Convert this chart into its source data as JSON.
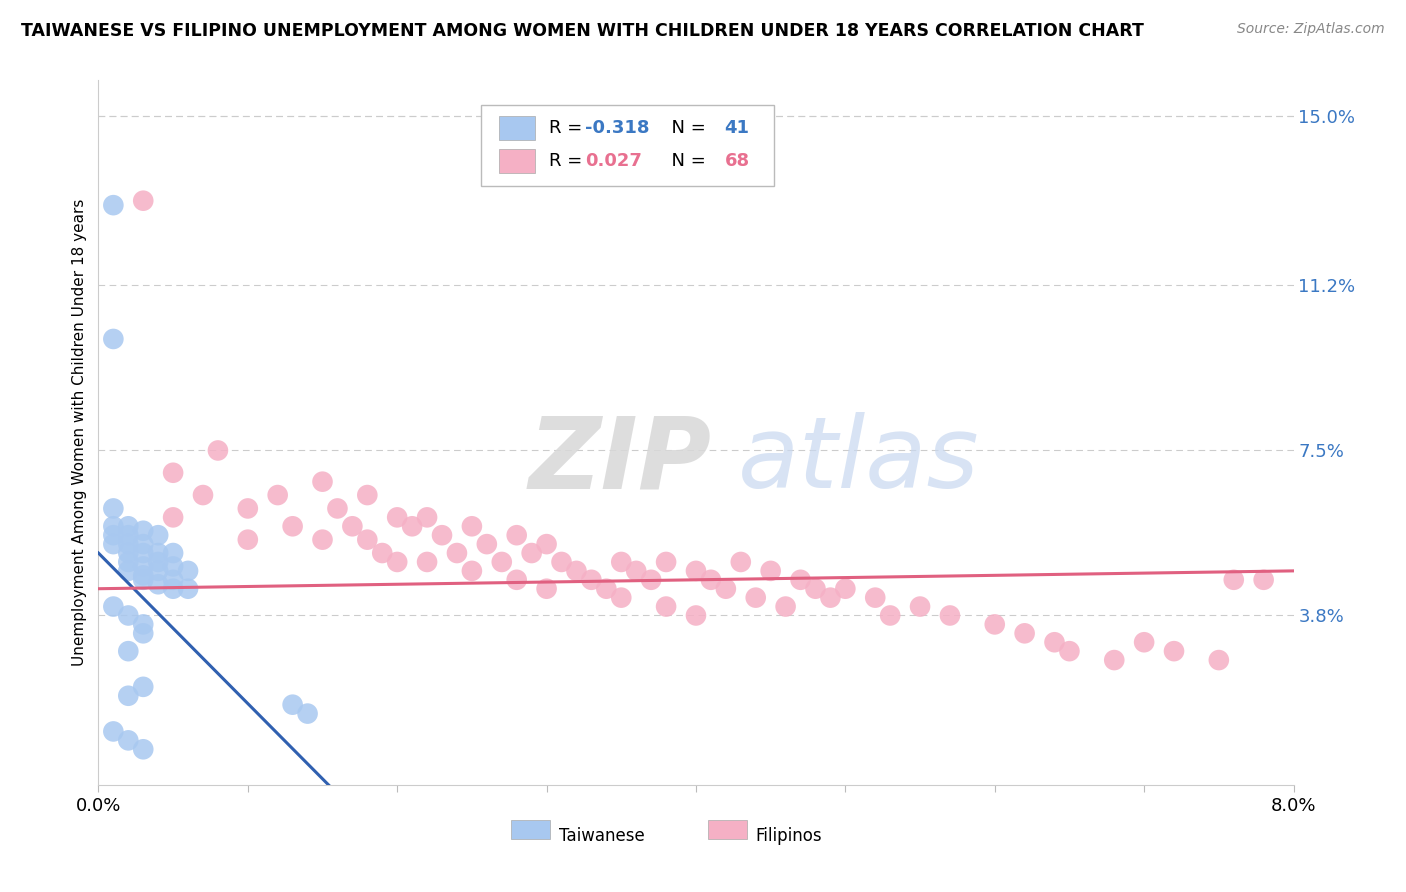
{
  "title": "TAIWANESE VS FILIPINO UNEMPLOYMENT AMONG WOMEN WITH CHILDREN UNDER 18 YEARS CORRELATION CHART",
  "source": "Source: ZipAtlas.com",
  "xmin": 0.0,
  "xmax": 0.08,
  "ymin": 0.0,
  "ymax": 0.158,
  "ytick_vals": [
    0.0,
    0.038,
    0.075,
    0.112,
    0.15
  ],
  "ytick_labels": [
    "",
    "3.8%",
    "7.5%",
    "11.2%",
    "15.0%"
  ],
  "taiwanese_color": "#a8c8f0",
  "filipino_color": "#f5b0c5",
  "trend_tw_color": "#3060b0",
  "trend_fil_color": "#e06080",
  "tw_R": "-0.318",
  "tw_N": "41",
  "fil_R": "0.027",
  "fil_N": "68",
  "r_tw_color": "#3b78c3",
  "r_fil_color": "#e87090",
  "tw_x": [
    0.001,
    0.001,
    0.001,
    0.001,
    0.001,
    0.002,
    0.002,
    0.002,
    0.002,
    0.002,
    0.002,
    0.003,
    0.003,
    0.003,
    0.003,
    0.003,
    0.003,
    0.004,
    0.004,
    0.004,
    0.004,
    0.004,
    0.005,
    0.005,
    0.005,
    0.005,
    0.006,
    0.006,
    0.001,
    0.002,
    0.003,
    0.003,
    0.013,
    0.014,
    0.001,
    0.002,
    0.003,
    0.001,
    0.002,
    0.002,
    0.003
  ],
  "tw_y": [
    0.13,
    0.062,
    0.058,
    0.056,
    0.054,
    0.058,
    0.056,
    0.054,
    0.052,
    0.05,
    0.048,
    0.057,
    0.054,
    0.052,
    0.049,
    0.047,
    0.046,
    0.056,
    0.052,
    0.05,
    0.048,
    0.045,
    0.052,
    0.049,
    0.046,
    0.044,
    0.048,
    0.044,
    0.1,
    0.038,
    0.036,
    0.034,
    0.018,
    0.016,
    0.012,
    0.01,
    0.008,
    0.04,
    0.02,
    0.03,
    0.022
  ],
  "fil_x": [
    0.003,
    0.005,
    0.005,
    0.007,
    0.008,
    0.01,
    0.01,
    0.012,
    0.013,
    0.015,
    0.015,
    0.016,
    0.017,
    0.018,
    0.018,
    0.019,
    0.02,
    0.02,
    0.021,
    0.022,
    0.022,
    0.023,
    0.024,
    0.025,
    0.025,
    0.026,
    0.027,
    0.028,
    0.028,
    0.029,
    0.03,
    0.03,
    0.031,
    0.032,
    0.033,
    0.034,
    0.035,
    0.035,
    0.036,
    0.037,
    0.038,
    0.038,
    0.04,
    0.04,
    0.041,
    0.042,
    0.043,
    0.044,
    0.045,
    0.046,
    0.047,
    0.048,
    0.049,
    0.05,
    0.052,
    0.053,
    0.055,
    0.057,
    0.06,
    0.062,
    0.064,
    0.065,
    0.068,
    0.07,
    0.072,
    0.075,
    0.076,
    0.078
  ],
  "fil_y": [
    0.131,
    0.07,
    0.06,
    0.065,
    0.075,
    0.062,
    0.055,
    0.065,
    0.058,
    0.068,
    0.055,
    0.062,
    0.058,
    0.065,
    0.055,
    0.052,
    0.06,
    0.05,
    0.058,
    0.06,
    0.05,
    0.056,
    0.052,
    0.058,
    0.048,
    0.054,
    0.05,
    0.056,
    0.046,
    0.052,
    0.054,
    0.044,
    0.05,
    0.048,
    0.046,
    0.044,
    0.05,
    0.042,
    0.048,
    0.046,
    0.05,
    0.04,
    0.048,
    0.038,
    0.046,
    0.044,
    0.05,
    0.042,
    0.048,
    0.04,
    0.046,
    0.044,
    0.042,
    0.044,
    0.042,
    0.038,
    0.04,
    0.038,
    0.036,
    0.034,
    0.032,
    0.03,
    0.028,
    0.032,
    0.03,
    0.028,
    0.046,
    0.046
  ],
  "bottom_legend_taiwanese": "Taiwanese",
  "bottom_legend_filipinos": "Filipinos"
}
